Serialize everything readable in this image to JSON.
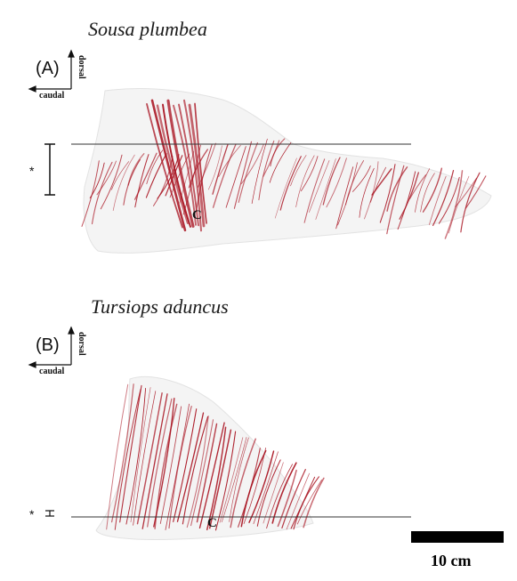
{
  "panel_a": {
    "species": "Sousa plumbea",
    "label": "(A)",
    "dorsal": "dorsal",
    "caudal": "caudal",
    "asterisk": "*",
    "c_marker": "C"
  },
  "panel_b": {
    "species": "Tursiops aduncus",
    "label": "(B)",
    "dorsal": "dorsal",
    "caudal": "caudal",
    "asterisk": "*",
    "c_marker": "C"
  },
  "scale_bar": {
    "label": "10 cm"
  },
  "colors": {
    "vessel": "#a8101e",
    "fin_fill": "#f4f4f4",
    "line": "#333333"
  }
}
